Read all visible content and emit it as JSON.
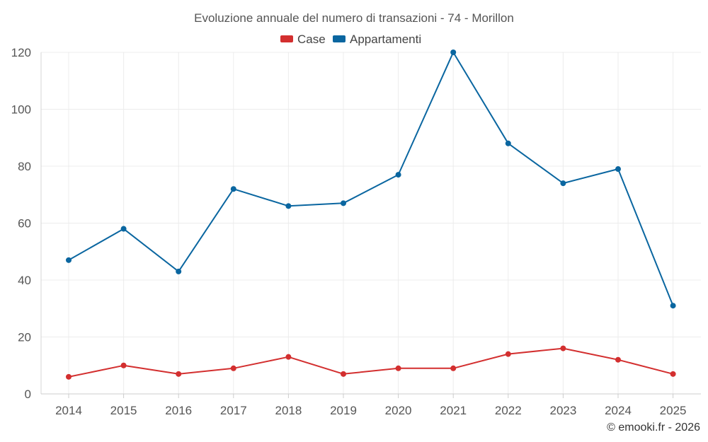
{
  "chart_data": {
    "type": "line",
    "title": "Evoluzione annuale del numero di transazioni - 74 - Morillon",
    "xlabel": "",
    "ylabel": "",
    "categories": [
      "2014",
      "2015",
      "2016",
      "2017",
      "2018",
      "2019",
      "2020",
      "2021",
      "2022",
      "2023",
      "2024",
      "2025"
    ],
    "ylim": [
      0,
      120
    ],
    "yticks": [
      "0",
      "20",
      "40",
      "60",
      "80",
      "100",
      "120"
    ],
    "grid": true,
    "legend_position": "top-center",
    "series": [
      {
        "name": "Case",
        "color": "#d32f2f",
        "values": [
          6,
          10,
          7,
          9,
          13,
          7,
          9,
          9,
          14,
          16,
          12,
          7
        ]
      },
      {
        "name": "Appartamenti",
        "color": "#0a66a0",
        "values": [
          47,
          58,
          43,
          72,
          66,
          67,
          77,
          120,
          88,
          74,
          79,
          31
        ]
      }
    ],
    "credit": "© emooki.fr - 2026"
  }
}
